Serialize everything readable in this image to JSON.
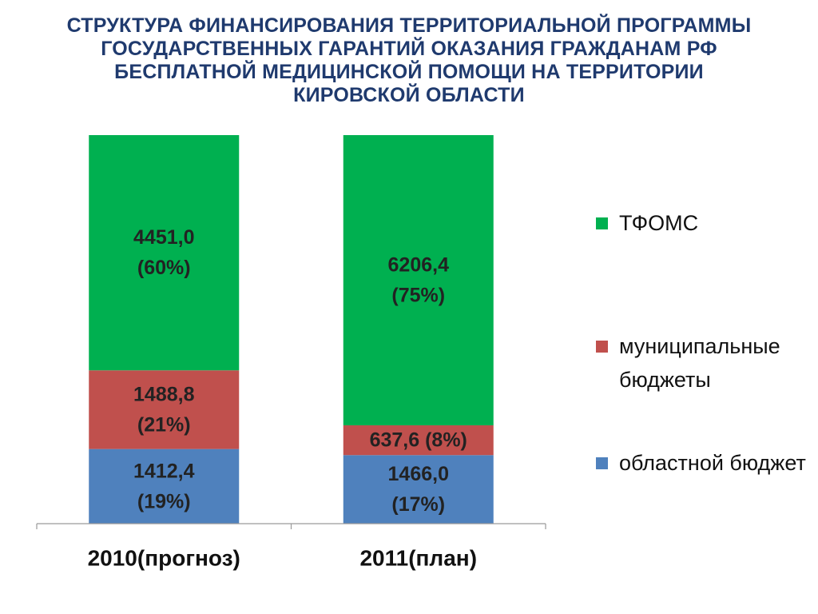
{
  "title_lines": [
    "СТРУКТУРА  ФИНАНСИРОВАНИЯ ТЕРРИТОРИАЛЬНОЙ ПРОГРАММЫ",
    "ГОСУДАРСТВЕННЫХ ГАРАНТИЙ ОКАЗАНИЯ ГРАЖДАНАМ РФ",
    "БЕСПЛАТНОЙ МЕДИЦИНСКОЙ ПОМОЩИ НА ТЕРРИТОРИИ",
    "КИРОВСКОЙ ОБЛАСТИ"
  ],
  "legend": {
    "placement": "right",
    "items": [
      {
        "label": "ТФОМС",
        "color": "#00b050"
      },
      {
        "label": "муниципальные бюджеты",
        "color": "#c0504d"
      },
      {
        "label": "областной бюджет",
        "color": "#4f81bd"
      }
    ]
  },
  "chart_data": {
    "type": "bar",
    "stacking": "percent",
    "title": "СТРУКТУРА  ФИНАНСИРОВАНИЯ ТЕРРИТОРИАЛЬНОЙ ПРОГРАММЫ ГОСУДАРСТВЕННЫХ ГАРАНТИЙ ОКАЗАНИЯ ГРАЖДАНАМ РФ БЕСПЛАТНОЙ МЕДИЦИНСКОЙ ПОМОЩИ НА ТЕРРИТОРИИ КИРОВСКОЙ ОБЛАСТИ",
    "categories": [
      "2010(прогноз)",
      "2011(план)"
    ],
    "series": [
      {
        "name": "областной бюджет",
        "color": "#4f81bd",
        "values": [
          1412.4,
          1466.0
        ],
        "percents": [
          19,
          17
        ],
        "labels": [
          [
            "1412,4",
            "(19%)"
          ],
          [
            "1466,0",
            "(17%)"
          ]
        ]
      },
      {
        "name": "муниципальные бюджеты",
        "color": "#c0504d",
        "values": [
          1488.8,
          637.6
        ],
        "percents": [
          21,
          8
        ],
        "labels": [
          [
            "1488,8",
            "(21%)"
          ],
          [
            "637,6 (8%)"
          ]
        ]
      },
      {
        "name": "ТФОМС",
        "color": "#00b050",
        "values": [
          4451.0,
          6206.4
        ],
        "percents": [
          60,
          75
        ],
        "labels": [
          [
            "4451,0",
            "(60%)"
          ],
          [
            "6206,4",
            "(75%)"
          ]
        ]
      }
    ],
    "ylim": [
      0,
      100
    ],
    "grid": false,
    "legend_placement": "right"
  }
}
